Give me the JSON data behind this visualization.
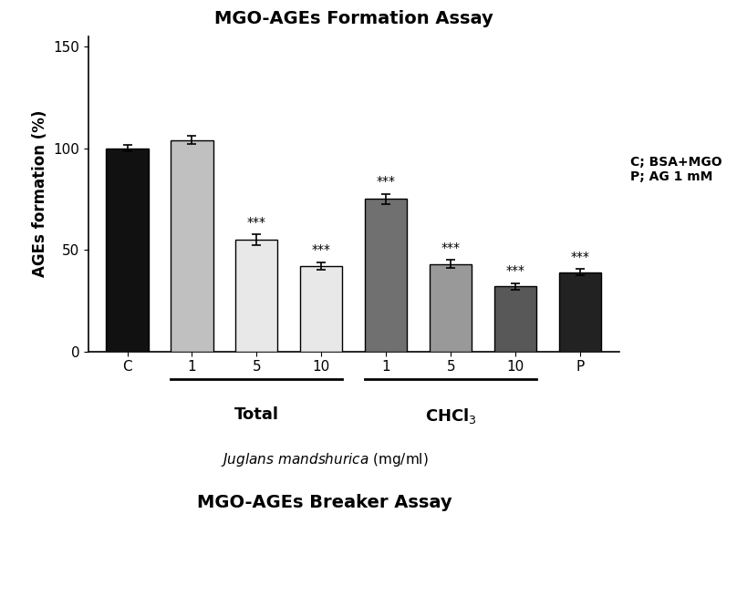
{
  "title": "MGO-AGEs Formation Assay",
  "ylabel": "AGEs formation (%)",
  "xlabel_italic": "Juglans mandshurica",
  "xlabel_normal": " (mg/ml)",
  "bottom_title": "MGO-AGEs Breaker Assay",
  "legend_text": "C; BSA+MGO\nP; AG 1 mM",
  "x_labels": [
    "C",
    "1",
    "5",
    "10",
    "1",
    "5",
    "10",
    "P"
  ],
  "values": [
    100,
    104,
    55,
    42,
    75,
    43,
    32,
    39
  ],
  "errors": [
    1.5,
    2.0,
    2.5,
    2.0,
    2.5,
    2.0,
    1.5,
    1.5
  ],
  "colors": [
    "#111111",
    "#c0c0c0",
    "#e8e8e8",
    "#e8e8e8",
    "#707070",
    "#999999",
    "#585858",
    "#222222"
  ],
  "stars": [
    null,
    null,
    "***",
    "***",
    "***",
    "***",
    "***",
    "***"
  ],
  "group_labels": [
    "Total",
    "CHCl$_3$"
  ],
  "ylim": [
    0,
    155
  ],
  "yticks": [
    0,
    50,
    100,
    150
  ],
  "background_color": "#ffffff",
  "title_fontsize": 14,
  "ylabel_fontsize": 12,
  "tick_fontsize": 11,
  "star_fontsize": 10,
  "group_label_fontsize": 13
}
